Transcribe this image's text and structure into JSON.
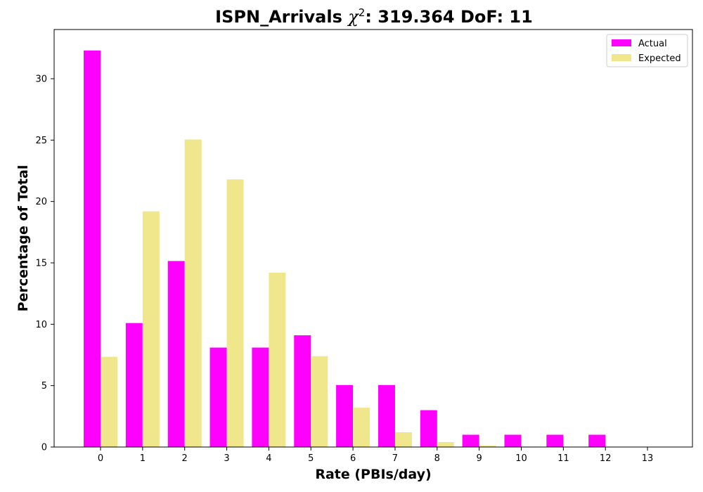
{
  "chart_data": {
    "type": "bar",
    "title_main": "ISPN_Arrivals ",
    "title_chi": "χ",
    "title_sup": "2",
    "title_rest": ": 319.364 DoF: 11",
    "xlabel": "Rate (PBIs/day)",
    "ylabel": "Percentage of Total",
    "categories": [
      "0",
      "1",
      "2",
      "3",
      "4",
      "5",
      "6",
      "7",
      "8",
      "9",
      "10",
      "11",
      "12",
      "13"
    ],
    "series": [
      {
        "name": "Actual",
        "color": "#ff00ff",
        "values": [
          32.3,
          10.1,
          15.15,
          8.1,
          8.1,
          9.1,
          5.05,
          5.05,
          3.0,
          1.0,
          1.0,
          1.0,
          1.0,
          0
        ]
      },
      {
        "name": "Expected",
        "color": "#f0e68c",
        "values": [
          7.35,
          19.2,
          25.05,
          21.8,
          14.2,
          7.4,
          3.2,
          1.2,
          0.4,
          0.12,
          0.04,
          0.01,
          0.0,
          0
        ]
      }
    ],
    "yticks": [
      0,
      5,
      10,
      15,
      20,
      25,
      30
    ],
    "ylim": [
      0,
      34
    ],
    "grid": false,
    "legend_position": "top-right"
  }
}
